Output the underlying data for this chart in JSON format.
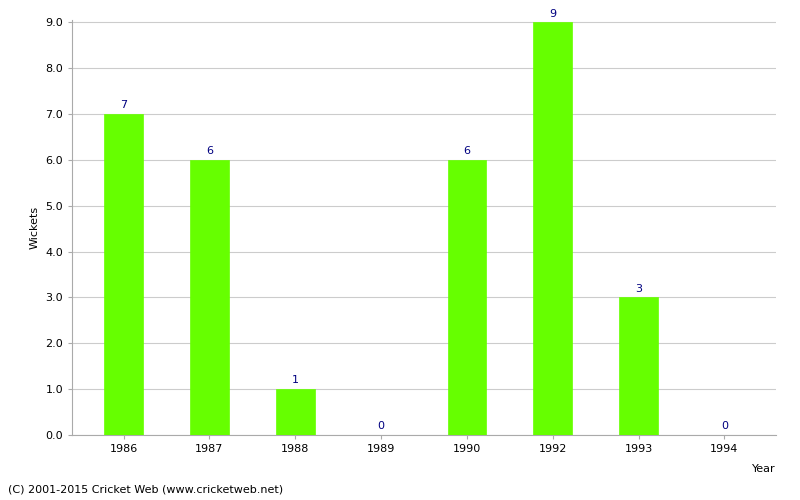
{
  "years": [
    "1986",
    "1987",
    "1988",
    "1989",
    "1990",
    "1992",
    "1993",
    "1994"
  ],
  "wickets": [
    7,
    6,
    1,
    0,
    6,
    9,
    3,
    0
  ],
  "bar_color": "#66ff00",
  "bar_edge_color": "#66ff00",
  "xlabel": "Year",
  "ylabel": "Wickets",
  "ylim_max": 9.0,
  "yticks": [
    0.0,
    1.0,
    2.0,
    3.0,
    4.0,
    5.0,
    6.0,
    7.0,
    8.0,
    9.0
  ],
  "label_color": "#000080",
  "label_fontsize": 8,
  "tick_fontsize": 8,
  "xlabel_fontsize": 8,
  "ylabel_fontsize": 8,
  "footer_text": "(C) 2001-2015 Cricket Web (www.cricketweb.net)",
  "footer_fontsize": 8,
  "background_color": "#ffffff",
  "grid_color": "#cccccc",
  "spine_color": "#aaaaaa"
}
